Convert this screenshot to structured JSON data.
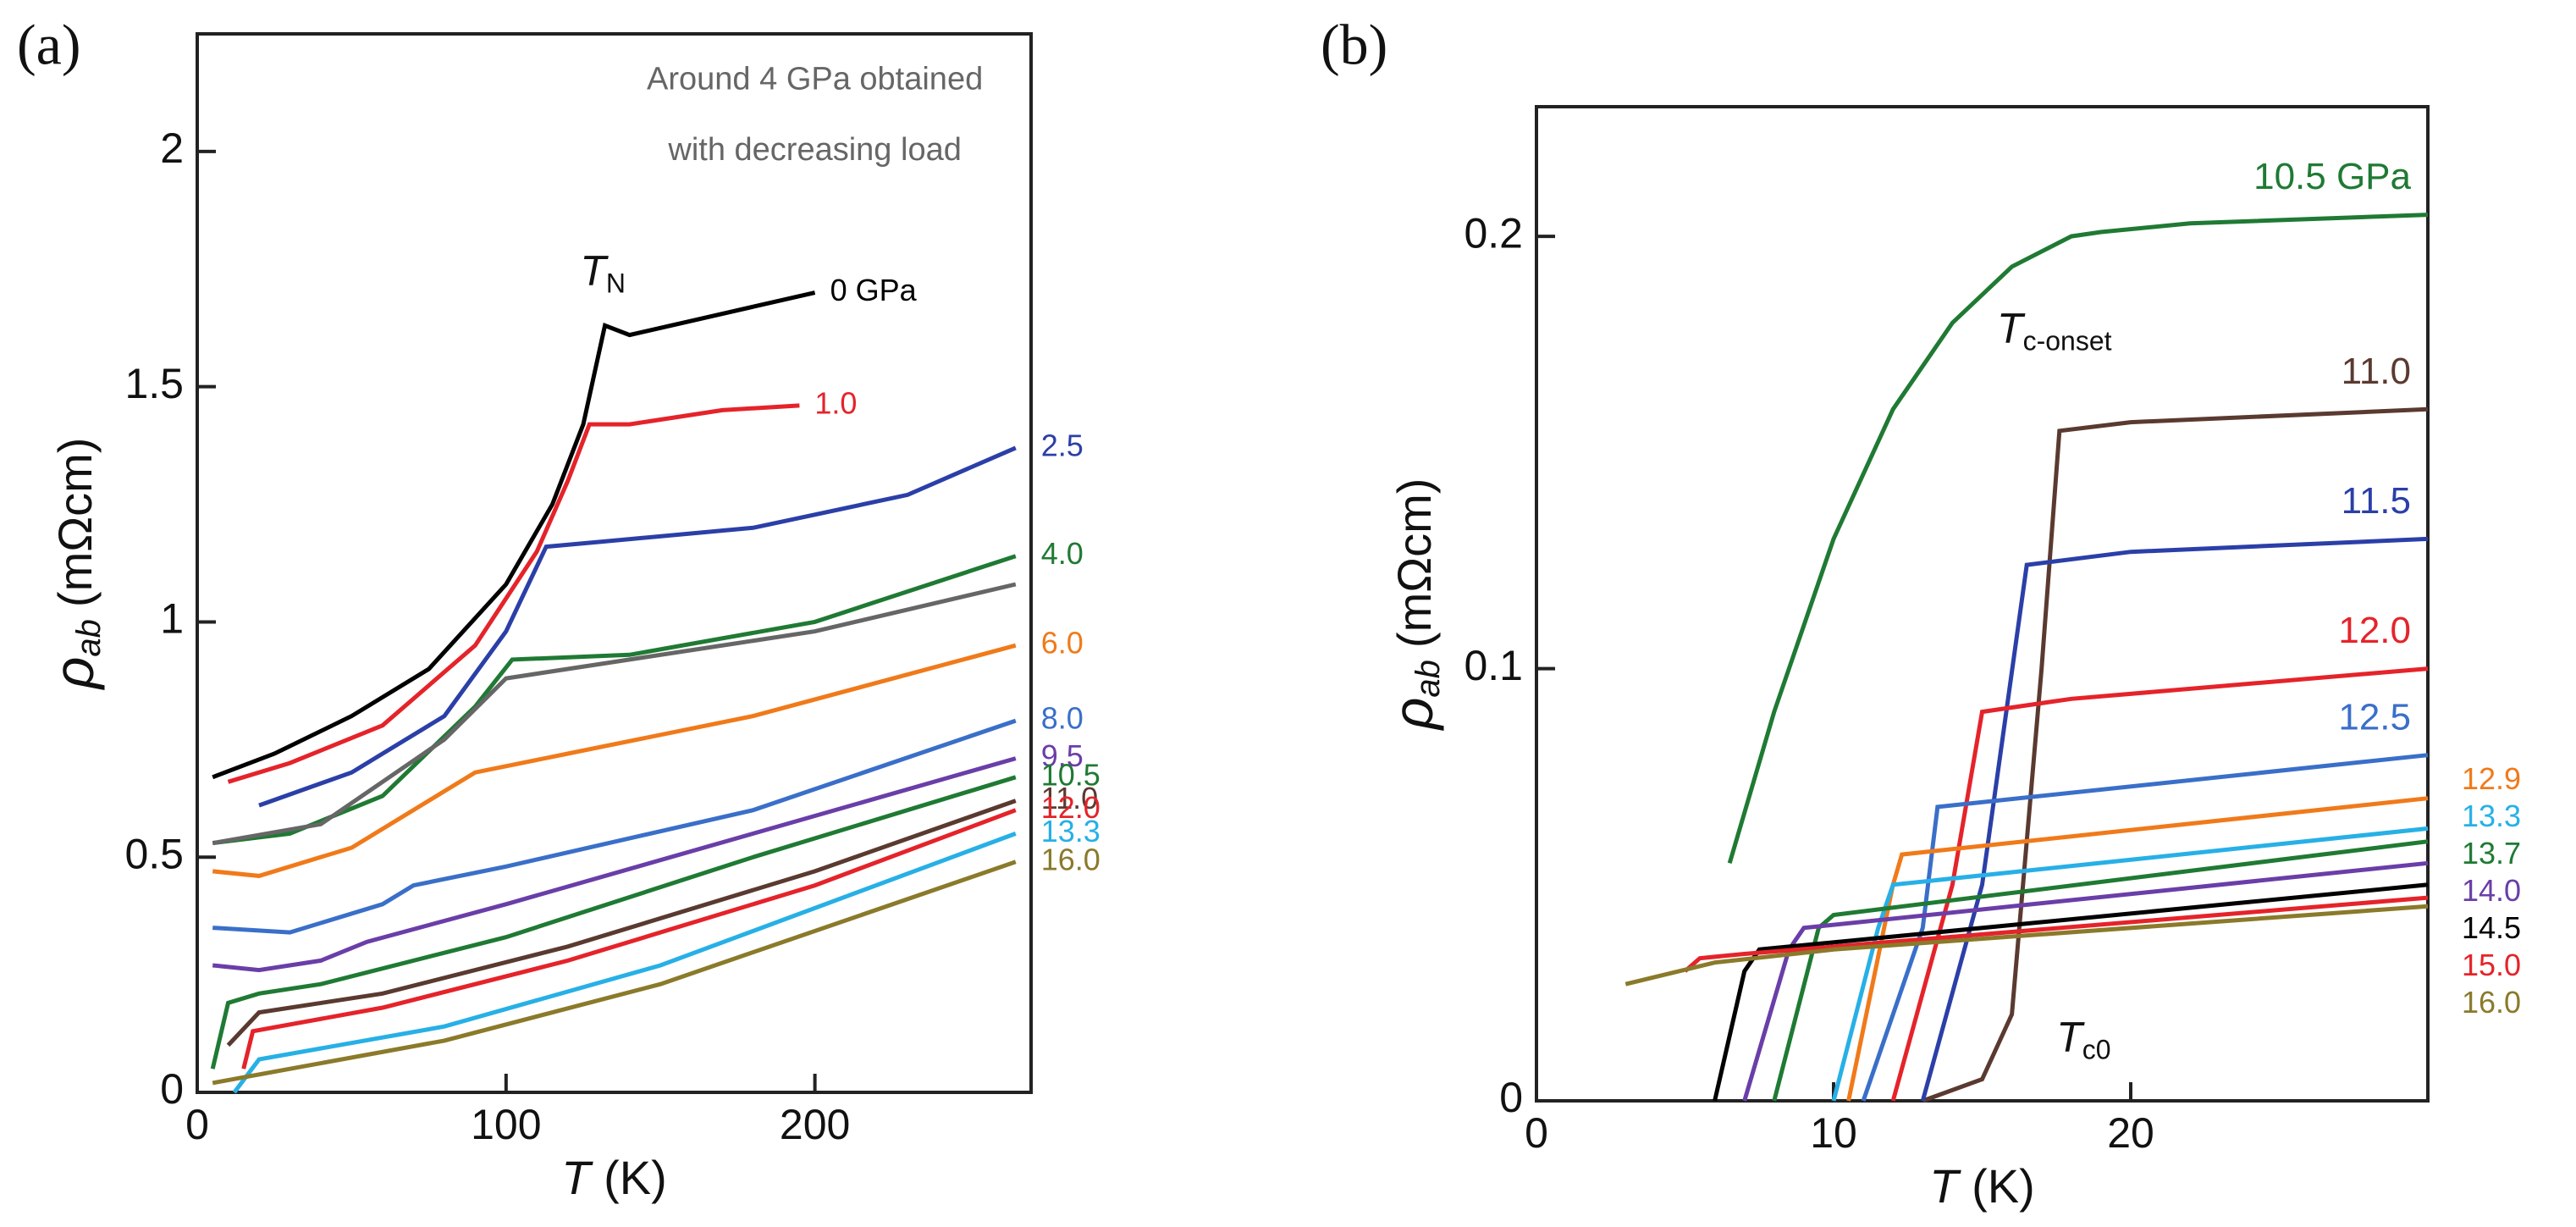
{
  "chart_data": [
    {
      "type": "line",
      "panel_label": "(a)",
      "x_label": {
        "symbol": "T",
        "unit": "(K)"
      },
      "y_label": {
        "symbol": "ρ",
        "sub": "ab",
        "unit": "(mΩcm)"
      },
      "xlim": [
        0,
        270
      ],
      "ylim": [
        0,
        2.25
      ],
      "xticks": [
        0,
        100,
        200
      ],
      "yticks": [
        0,
        0.5,
        1,
        1.5,
        2
      ],
      "annotations": [
        {
          "text": "Around 4 GPa obtained",
          "x": 200,
          "y": 2.15
        },
        {
          "text": "with decreasing load",
          "x": 200,
          "y": 2.0
        },
        {
          "text": "T",
          "sub": "N",
          "x": 124,
          "y": 1.74
        }
      ],
      "series": [
        {
          "name": "0 GPa",
          "color": "#000000",
          "x": [
            5,
            25,
            50,
            75,
            100,
            115,
            125,
            132,
            140,
            160,
            180,
            200
          ],
          "values": [
            0.67,
            0.72,
            0.8,
            0.9,
            1.08,
            1.25,
            1.42,
            1.63,
            1.61,
            1.64,
            1.67,
            1.7
          ]
        },
        {
          "name": "1.0",
          "color": "#e5232a",
          "x": [
            10,
            30,
            60,
            90,
            110,
            120,
            127,
            140,
            170,
            195
          ],
          "values": [
            0.66,
            0.7,
            0.78,
            0.95,
            1.15,
            1.3,
            1.42,
            1.42,
            1.45,
            1.46
          ]
        },
        {
          "name": "2.5",
          "color": "#2b3fa8",
          "x": [
            20,
            50,
            80,
            100,
            113,
            130,
            180,
            230,
            265
          ],
          "values": [
            0.61,
            0.68,
            0.8,
            0.98,
            1.16,
            1.17,
            1.2,
            1.27,
            1.37
          ]
        },
        {
          "name": "4.0",
          "color": "#1f7a33",
          "x": [
            5,
            30,
            60,
            90,
            102,
            140,
            200,
            265
          ],
          "values": [
            0.53,
            0.55,
            0.63,
            0.82,
            0.92,
            0.93,
            1.0,
            1.14
          ]
        },
        {
          "color": "#666666",
          "x": [
            5,
            40,
            80,
            100,
            140,
            200,
            265
          ],
          "values": [
            0.53,
            0.57,
            0.75,
            0.88,
            0.92,
            0.98,
            1.08
          ]
        },
        {
          "name": "6.0",
          "color": "#f07a1a",
          "x": [
            5,
            20,
            50,
            80,
            90,
            120,
            180,
            265
          ],
          "values": [
            0.47,
            0.46,
            0.52,
            0.64,
            0.68,
            0.72,
            0.8,
            0.95
          ]
        },
        {
          "name": "8.0",
          "color": "#3a6fc9",
          "x": [
            5,
            30,
            60,
            70,
            100,
            180,
            265
          ],
          "values": [
            0.35,
            0.34,
            0.4,
            0.44,
            0.48,
            0.6,
            0.79
          ]
        },
        {
          "name": "9.5",
          "color": "#6a3ea8",
          "x": [
            5,
            20,
            40,
            55,
            100,
            180,
            265
          ],
          "values": [
            0.27,
            0.26,
            0.28,
            0.32,
            0.4,
            0.55,
            0.71
          ]
        },
        {
          "name": "10.5",
          "color": "#1f7a33",
          "x": [
            5,
            10,
            20,
            40,
            100,
            180,
            265
          ],
          "values": [
            0.05,
            0.19,
            0.21,
            0.23,
            0.33,
            0.5,
            0.67
          ]
        },
        {
          "name": "11.0",
          "color": "#5a3a30",
          "x": [
            10,
            20,
            60,
            120,
            200,
            265
          ],
          "values": [
            0.1,
            0.17,
            0.21,
            0.31,
            0.47,
            0.62
          ]
        },
        {
          "name": "12.0",
          "color": "#e5232a",
          "x": [
            15,
            18,
            60,
            120,
            200,
            265
          ],
          "values": [
            0.05,
            0.13,
            0.18,
            0.28,
            0.44,
            0.6
          ]
        },
        {
          "name": "13.3",
          "color": "#27b0e6",
          "x": [
            12,
            20,
            80,
            150,
            265
          ],
          "values": [
            0,
            0.07,
            0.14,
            0.27,
            0.55
          ]
        },
        {
          "name": "16.0",
          "color": "#8a7a2a",
          "x": [
            5,
            80,
            150,
            265
          ],
          "values": [
            0.02,
            0.11,
            0.23,
            0.49
          ]
        }
      ]
    },
    {
      "type": "line",
      "panel_label": "(b)",
      "x_label": {
        "symbol": "T",
        "unit": "(K)"
      },
      "y_label": {
        "symbol": "ρ",
        "sub": "ab",
        "unit": "(mΩcm)"
      },
      "xlim": [
        0,
        30
      ],
      "ylim": [
        0,
        0.23
      ],
      "xticks": [
        0,
        10,
        20
      ],
      "yticks": [
        0,
        0.1,
        0.2
      ],
      "annotations": [
        {
          "text": "T",
          "sub": "c-onset",
          "x": 15.5,
          "y": 0.178
        },
        {
          "text": "T",
          "sub": "c0",
          "x": 17.5,
          "y": 0.014
        }
      ],
      "series": [
        {
          "name": "10.5 GPa",
          "color": "#1f7a33",
          "x": [
            6.5,
            8,
            10,
            12,
            14,
            16,
            18,
            19,
            22,
            30
          ],
          "values": [
            0.055,
            0.09,
            0.13,
            0.16,
            0.18,
            0.193,
            0.2,
            0.201,
            0.203,
            0.205
          ]
        },
        {
          "name": "11.0",
          "color": "#5a3a30",
          "x": [
            13,
            15,
            16,
            17,
            17.6,
            20,
            30
          ],
          "values": [
            0,
            0.005,
            0.02,
            0.1,
            0.155,
            0.157,
            0.16
          ]
        },
        {
          "name": "11.5",
          "color": "#2b3fa8",
          "x": [
            13,
            15,
            16.5,
            20,
            30
          ],
          "values": [
            0,
            0.05,
            0.124,
            0.127,
            0.13
          ]
        },
        {
          "name": "12.0",
          "color": "#e5232a",
          "x": [
            12,
            14,
            15,
            18,
            30
          ],
          "values": [
            0,
            0.05,
            0.09,
            0.093,
            0.1
          ]
        },
        {
          "name": "12.5",
          "color": "#3a6fc9",
          "x": [
            11,
            13,
            13.5,
            30
          ],
          "values": [
            0,
            0.04,
            0.068,
            0.08
          ]
        },
        {
          "name": "12.9",
          "color": "#f07a1a",
          "x": [
            10.5,
            12,
            12.3,
            30
          ],
          "values": [
            0,
            0.05,
            0.057,
            0.07
          ]
        },
        {
          "name": "13.3",
          "color": "#27b0e6",
          "x": [
            10,
            11.5,
            12,
            30
          ],
          "values": [
            0,
            0.04,
            0.05,
            0.063
          ]
        },
        {
          "name": "13.7",
          "color": "#1f7a33",
          "x": [
            8,
            9.5,
            10,
            30
          ],
          "values": [
            0,
            0.04,
            0.043,
            0.06
          ]
        },
        {
          "name": "14.0",
          "color": "#6a3ea8",
          "x": [
            7,
            8.5,
            9,
            30
          ],
          "values": [
            0,
            0.035,
            0.04,
            0.055
          ]
        },
        {
          "name": "14.5",
          "color": "#000000",
          "x": [
            6,
            7,
            7.5,
            30
          ],
          "values": [
            0,
            0.03,
            0.035,
            0.05
          ]
        },
        {
          "name": "15.0",
          "color": "#e5232a",
          "x": [
            5,
            5.5,
            7,
            30
          ],
          "values": [
            0.03,
            0.033,
            0.034,
            0.047
          ]
        },
        {
          "name": "16.0",
          "color": "#8a7a2a",
          "x": [
            3,
            6,
            10,
            30
          ],
          "values": [
            0.027,
            0.032,
            0.035,
            0.045
          ]
        }
      ]
    }
  ]
}
